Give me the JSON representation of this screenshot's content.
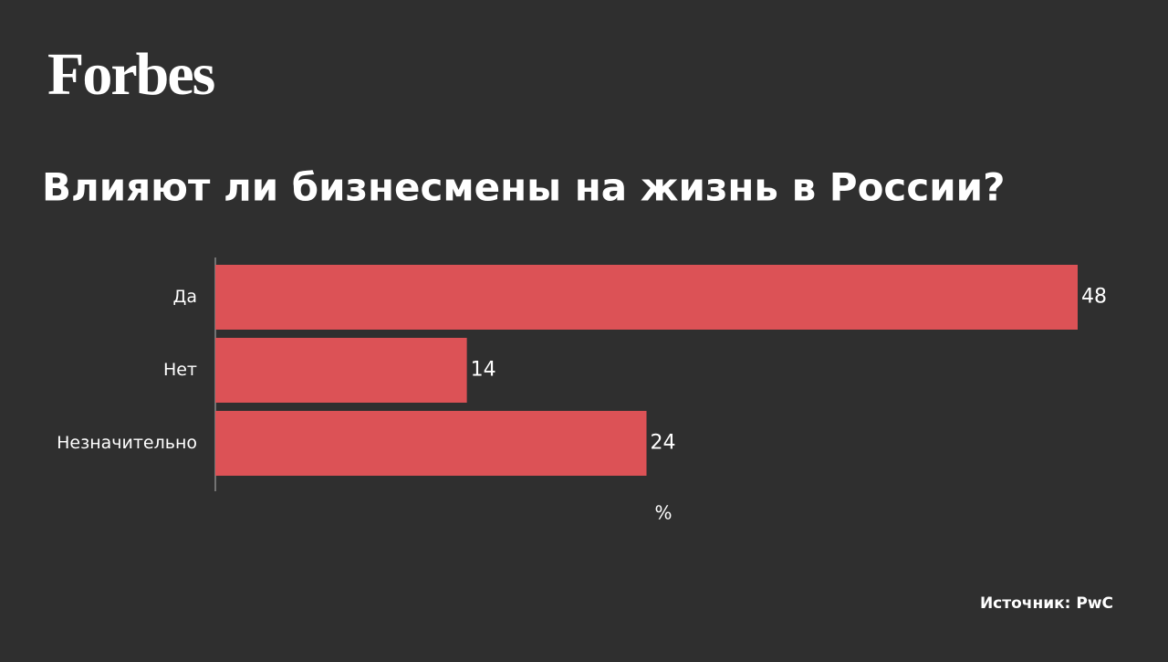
{
  "brand": "Forbes",
  "source": "Источник: PwC",
  "chart_data": {
    "type": "bar",
    "orientation": "horizontal",
    "title": "Влияют ли бизнесмены на жизнь в России?",
    "categories": [
      "Да",
      "Нет",
      "Незначительно"
    ],
    "values": [
      48,
      14,
      24
    ],
    "color": "#dc5256",
    "x_label": "%",
    "xlim": [
      0,
      48
    ]
  }
}
